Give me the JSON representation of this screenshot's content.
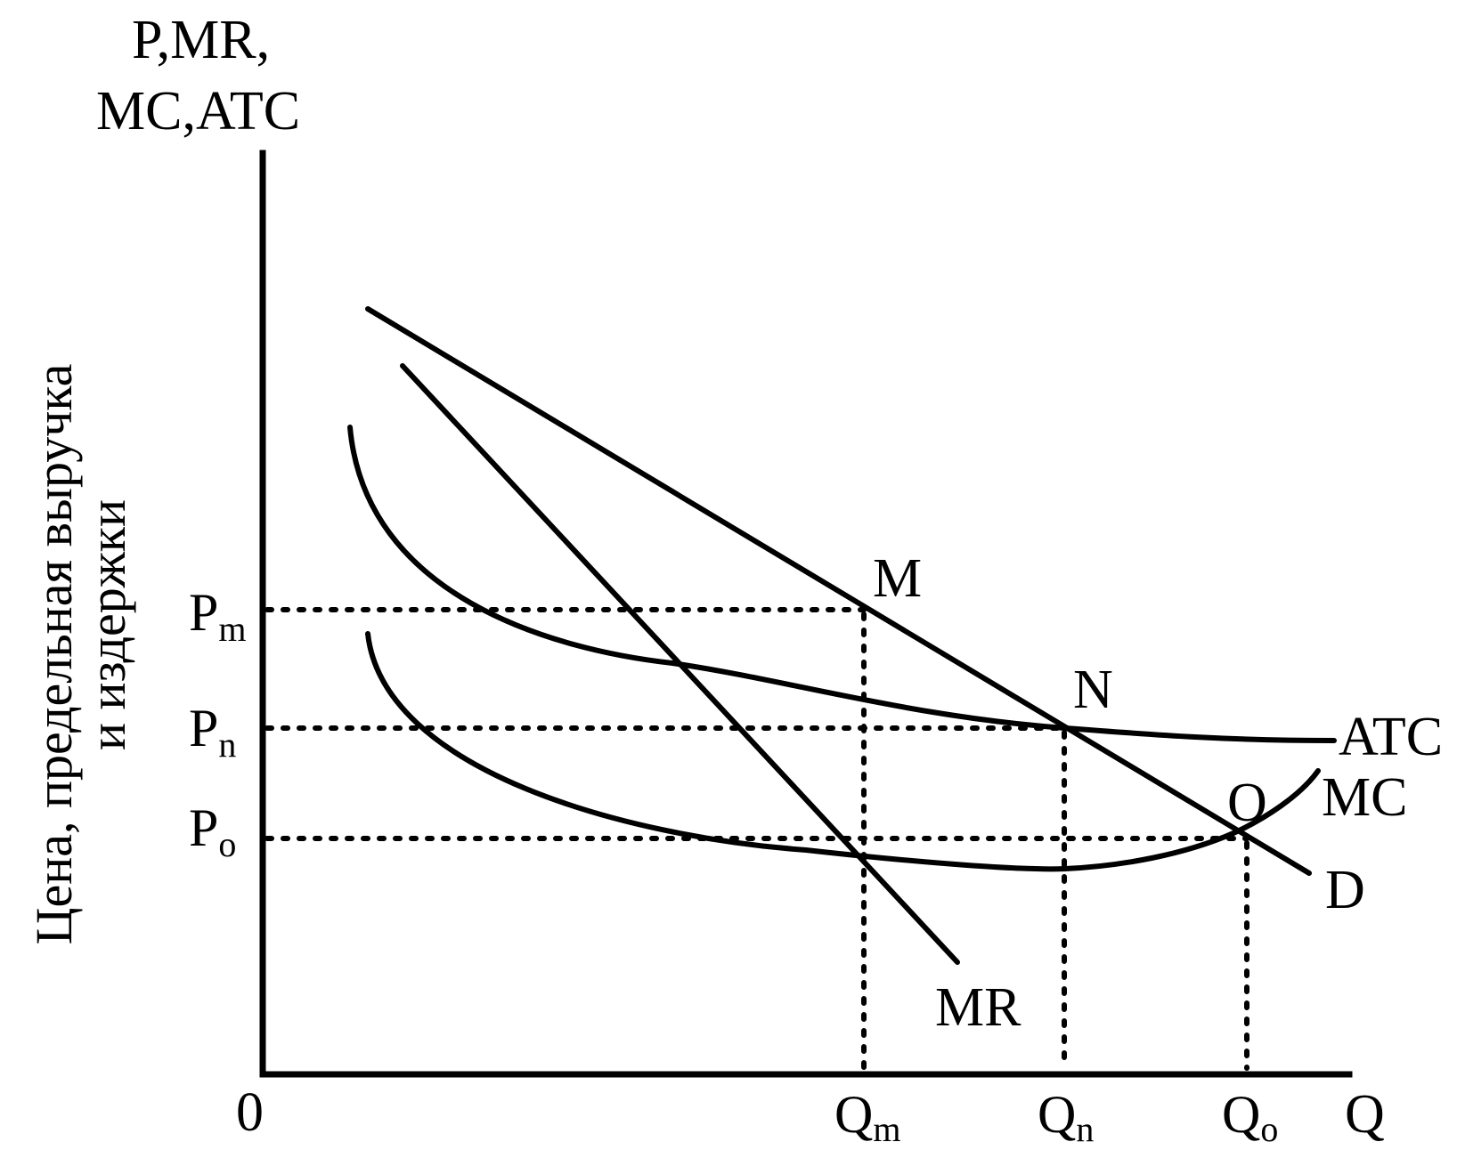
{
  "axes": {
    "y_title_line1": "P,MR,",
    "y_title_line2": "MC,ATC",
    "y_side_line1": "Цена, предельная выручка",
    "y_side_line2": "и издержки",
    "x_title": "Q",
    "origin": "0"
  },
  "price_levels": [
    {
      "base": "P",
      "sub": "m"
    },
    {
      "base": "P",
      "sub": "n"
    },
    {
      "base": "P",
      "sub": "o"
    }
  ],
  "quantity_levels": [
    {
      "base": "Q",
      "sub": "m"
    },
    {
      "base": "Q",
      "sub": "n"
    },
    {
      "base": "Q",
      "sub": "o"
    }
  ],
  "curves": {
    "demand": "D",
    "marginal_revenue": "MR",
    "average_total_cost": "ATC",
    "marginal_cost": "MC"
  },
  "points": {
    "monopoly": "M",
    "n_point": "N",
    "o_point": "O"
  }
}
